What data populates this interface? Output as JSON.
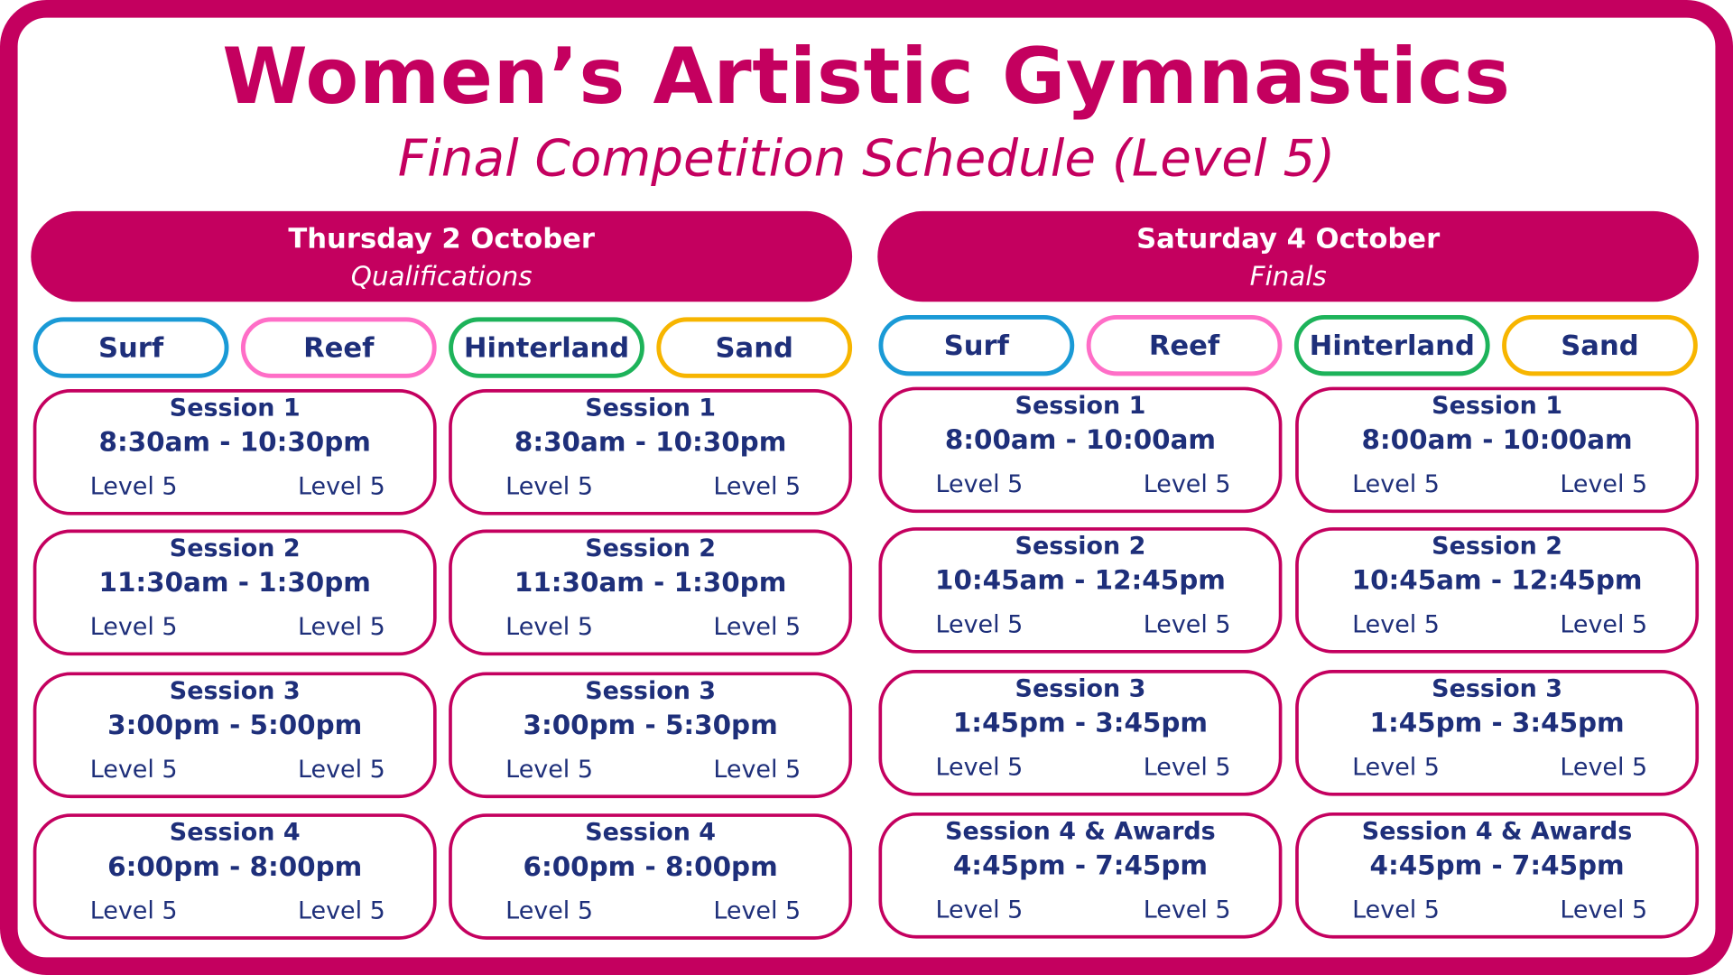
{
  "title": "Women’s Artistic Gymnastics",
  "subtitle": "Final Competition Schedule (Level 5)",
  "colors": {
    "brand": "#C4005F",
    "text": "#1E2F7A",
    "surf": "#1A9AD6",
    "reef": "#FF6EC7",
    "hinterland": "#1DB35A",
    "sand": "#F7B500"
  },
  "days": [
    {
      "date": "Thursday 2 October",
      "stage": "Qualifications",
      "venues": [
        "Surf",
        "Reef",
        "Hinterland",
        "Sand"
      ],
      "columns": [
        [
          {
            "title": "Session 1",
            "time": "8:30am - 10:30pm",
            "levels": [
              "Level 5",
              "Level 5"
            ]
          },
          {
            "title": "Session 2",
            "time": "11:30am - 1:30pm",
            "levels": [
              "Level 5",
              "Level 5"
            ]
          },
          {
            "title": "Session 3",
            "time": "3:00pm - 5:00pm",
            "levels": [
              "Level 5",
              "Level 5"
            ]
          },
          {
            "title": "Session 4",
            "time": "6:00pm - 8:00pm",
            "levels": [
              "Level 5",
              "Level 5"
            ]
          }
        ],
        [
          {
            "title": "Session 1",
            "time": "8:30am - 10:30pm",
            "levels": [
              "Level 5",
              "Level 5"
            ]
          },
          {
            "title": "Session 2",
            "time": "11:30am - 1:30pm",
            "levels": [
              "Level 5",
              "Level 5"
            ]
          },
          {
            "title": "Session 3",
            "time": "3:00pm - 5:30pm",
            "levels": [
              "Level 5",
              "Level 5"
            ]
          },
          {
            "title": "Session 4",
            "time": "6:00pm - 8:00pm",
            "levels": [
              "Level 5",
              "Level 5"
            ]
          }
        ]
      ]
    },
    {
      "date": "Saturday 4 October",
      "stage": "Finals",
      "venues": [
        "Surf",
        "Reef",
        "Hinterland",
        "Sand"
      ],
      "columns": [
        [
          {
            "title": "Session 1",
            "time": "8:00am - 10:00am",
            "levels": [
              "Level 5",
              "Level 5"
            ]
          },
          {
            "title": "Session 2",
            "time": "10:45am - 12:45pm",
            "levels": [
              "Level 5",
              "Level 5"
            ]
          },
          {
            "title": "Session 3",
            "time": "1:45pm - 3:45pm",
            "levels": [
              "Level 5",
              "Level 5"
            ]
          },
          {
            "title": "Session 4 & Awards",
            "time": "4:45pm - 7:45pm",
            "levels": [
              "Level 5",
              "Level 5"
            ]
          }
        ],
        [
          {
            "title": "Session 1",
            "time": "8:00am - 10:00am",
            "levels": [
              "Level 5",
              "Level 5"
            ]
          },
          {
            "title": "Session 2",
            "time": "10:45am - 12:45pm",
            "levels": [
              "Level 5",
              "Level 5"
            ]
          },
          {
            "title": "Session 3",
            "time": "1:45pm - 3:45pm",
            "levels": [
              "Level 5",
              "Level 5"
            ]
          },
          {
            "title": "Session 4 & Awards",
            "time": "4:45pm - 7:45pm",
            "levels": [
              "Level 5",
              "Level 5"
            ]
          }
        ]
      ]
    }
  ]
}
